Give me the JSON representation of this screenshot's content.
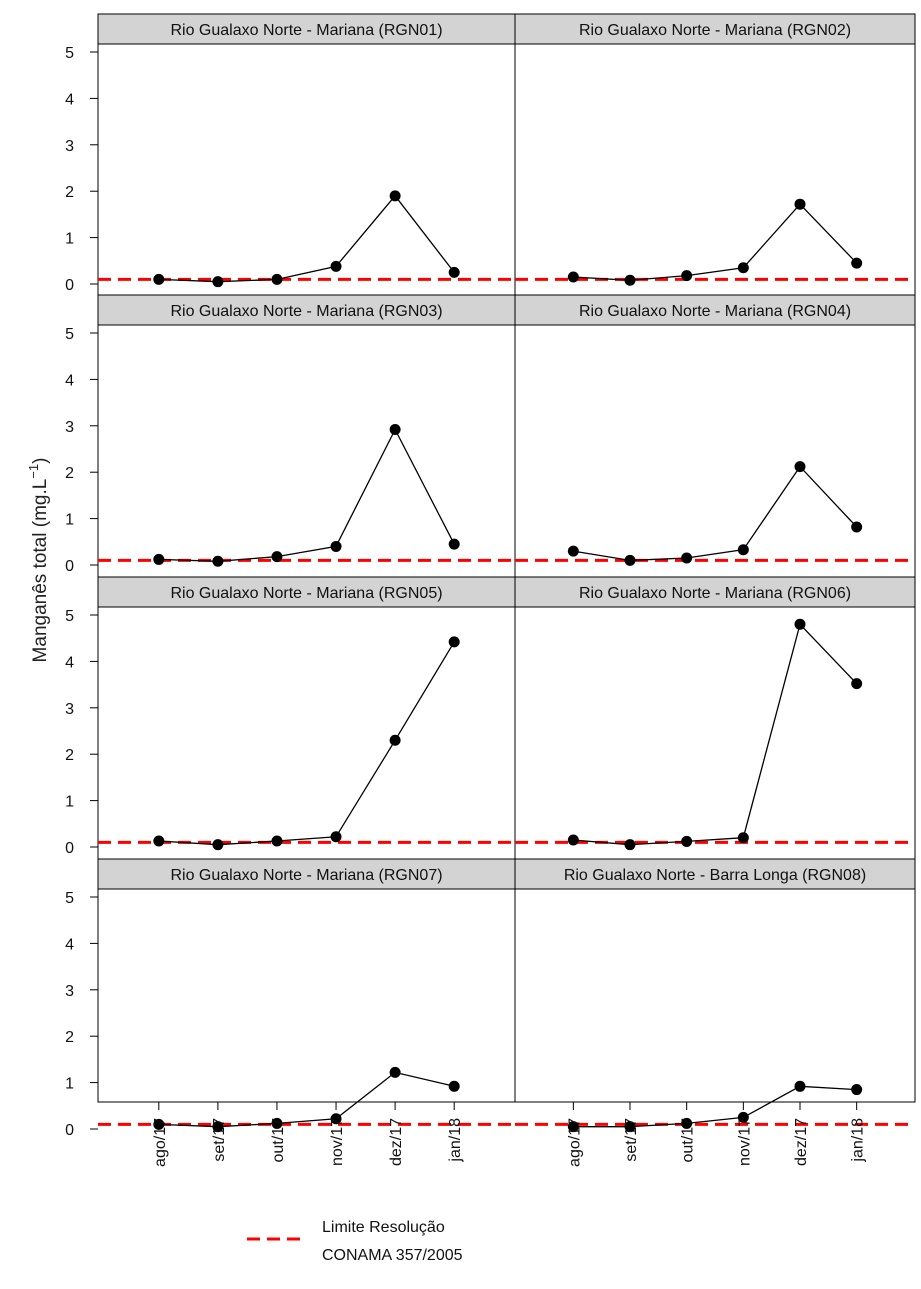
{
  "chart_data": {
    "type": "line",
    "layout": "facet-grid",
    "ylabel": "Manganês total (mg.L",
    "ylabel_exponent": "−1",
    "ylabel_close": ")",
    "ylim": [
      0,
      5
    ],
    "yticks": [
      0,
      1,
      2,
      3,
      4,
      5
    ],
    "categories": [
      "ago/17",
      "set/17",
      "out/17",
      "nov/17",
      "dez/17",
      "jan/18"
    ],
    "reference_line": {
      "value": 0.1,
      "color": "#ff0000",
      "style": "dashed",
      "legend_line1": "Limite Resolução",
      "legend_line2": "CONAMA 357/2005"
    },
    "colors": {
      "series": "#000000",
      "strip": "#d3d3d3",
      "reference": "#ff0000"
    },
    "panels": [
      {
        "title": "Rio Gualaxo Norte - Mariana (RGN01)",
        "values": [
          0.1,
          0.05,
          0.1,
          0.38,
          1.9,
          0.25
        ]
      },
      {
        "title": "Rio Gualaxo Norte - Mariana (RGN02)",
        "values": [
          0.15,
          0.08,
          0.18,
          0.35,
          1.72,
          0.45
        ]
      },
      {
        "title": "Rio Gualaxo Norte - Mariana (RGN03)",
        "values": [
          0.12,
          0.08,
          0.18,
          0.4,
          2.92,
          0.45
        ]
      },
      {
        "title": "Rio Gualaxo Norte - Mariana (RGN04)",
        "values": [
          0.3,
          0.1,
          0.15,
          0.33,
          2.12,
          0.82
        ]
      },
      {
        "title": "Rio Gualaxo Norte - Mariana (RGN05)",
        "values": [
          0.13,
          0.05,
          0.13,
          0.22,
          2.3,
          4.42
        ]
      },
      {
        "title": "Rio Gualaxo Norte - Mariana (RGN06)",
        "values": [
          0.15,
          0.05,
          0.12,
          0.2,
          4.8,
          3.52
        ]
      },
      {
        "title": "Rio Gualaxo Norte - Mariana (RGN07)",
        "values": [
          0.1,
          0.05,
          0.12,
          0.22,
          1.22,
          0.92
        ]
      },
      {
        "title": "Rio Gualaxo Norte - Barra Longa (RGN08)",
        "values": [
          0.05,
          0.05,
          0.12,
          0.25,
          0.92,
          0.85
        ]
      }
    ]
  }
}
